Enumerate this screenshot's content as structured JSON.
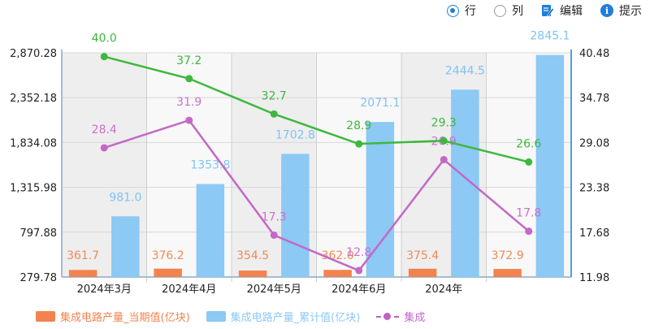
{
  "toolbar": {
    "row_label": "行",
    "col_label": "列",
    "edit_label": "编辑",
    "hint_label": "提示"
  },
  "chart_data": {
    "type": "bar",
    "categories": [
      "2024年3月",
      "2024年4月",
      "2024年5月",
      "2024年6月",
      "2024年",
      ""
    ],
    "left_axis": {
      "ticks": [
        "2,870.28",
        "2,352.18",
        "1,834.08",
        "1,315.98",
        "797.88",
        "279.78"
      ],
      "ylim": [
        279.78,
        2870.28
      ]
    },
    "right_axis": {
      "ticks": [
        "40.48",
        "34.78",
        "29.08",
        "23.38",
        "17.68",
        "11.98"
      ],
      "ylim": [
        11.98,
        40.48
      ]
    },
    "series": [
      {
        "name": "集成电路产量_当期值(亿块)",
        "kind": "bar",
        "axis": "left",
        "color": "#f2834f",
        "label_color": "#f08a5a",
        "values": [
          361.7,
          376.2,
          354.5,
          362.0,
          375.4,
          372.9
        ],
        "labels": [
          "361.7",
          "376.2",
          "354.5",
          "362.0",
          "375.4",
          "372.9"
        ]
      },
      {
        "name": "集成电路产量_累计值(亿块)",
        "kind": "bar",
        "axis": "left",
        "color": "#8cc9f4",
        "label_color": "#7fc3f0",
        "values": [
          981.0,
          1353.8,
          1702.8,
          2071.1,
          2444.5,
          2845.1
        ],
        "labels": [
          "981.0",
          "1353.8",
          "1702.8",
          "2071.1",
          "2444.5",
          "2845.1"
        ]
      },
      {
        "name": "集成",
        "kind": "line",
        "axis": "right",
        "color": "#c368c8",
        "label_color": "#cc70cc",
        "values": [
          28.4,
          31.9,
          17.3,
          12.8,
          26.9,
          17.8
        ],
        "labels": [
          "28.4",
          "31.9",
          "17.3",
          "12.8",
          "26.9",
          "17.8"
        ]
      },
      {
        "name": "",
        "kind": "line",
        "axis": "right",
        "color": "#3db83d",
        "label_color": "#3db83d",
        "values": [
          40.0,
          37.2,
          32.7,
          28.9,
          29.3,
          26.6
        ],
        "labels": [
          "40.0",
          "37.2",
          "32.7",
          "28.9",
          "29.3",
          "26.6"
        ]
      }
    ],
    "grid": true,
    "legend_position": "bottom-left"
  },
  "legend": [
    {
      "label": "集成电路产量_当期值(亿块)",
      "color": "#f2834f"
    },
    {
      "label": "集成电路产量_累计值(亿块)",
      "color": "#8cc9f4"
    },
    {
      "label": "集成",
      "color": "#c368c8"
    }
  ]
}
